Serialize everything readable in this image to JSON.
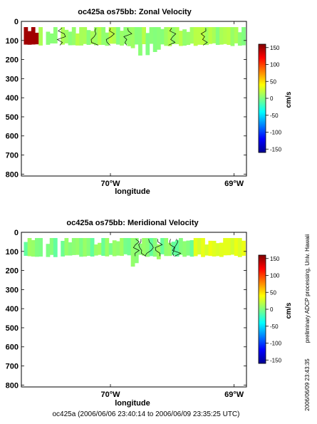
{
  "footer": "oc425a (2006/06/06 23:40:14 to 2006/06/09 23:35:25 UTC)",
  "side_note": "preliminary ADCP processing,  Univ. Hawaii",
  "side_timestamp": "2006/06/09 23:43:35",
  "colorbar": {
    "label": "cm/s",
    "ticks": [
      150,
      100,
      50,
      0,
      -50,
      -100,
      -150
    ],
    "range": [
      -160,
      160
    ],
    "colormap": [
      "#00008f",
      "#0000ff",
      "#0080ff",
      "#00ffff",
      "#80ff80",
      "#ffff00",
      "#ff8000",
      "#ff0000",
      "#800000"
    ]
  },
  "chart_data": [
    {
      "type": "heatmap",
      "title": "oc425a os75bb: Zonal Velocity",
      "xlabel": "longitude",
      "ylabel": "",
      "xticks": [
        {
          "value": -70,
          "label": "70°W"
        },
        {
          "value": -69,
          "label": "69°W"
        }
      ],
      "yticks": [
        0,
        100,
        200,
        300,
        400,
        500,
        600,
        700,
        800
      ],
      "xlim": [
        -70.72,
        -68.9
      ],
      "ylim": [
        810,
        0
      ],
      "unit": "cm/s",
      "data_depth_range": [
        30,
        130
      ],
      "max_depth": 180,
      "dominant_value": 10,
      "extreme_value": 150,
      "extreme_lon": -70.66
    },
    {
      "type": "heatmap",
      "title": "oc425a os75bb: Meridional Velocity",
      "xlabel": "longitude",
      "ylabel": "",
      "xticks": [
        {
          "value": -70,
          "label": "70°W"
        },
        {
          "value": -69,
          "label": "69°W"
        }
      ],
      "yticks": [
        0,
        100,
        200,
        300,
        400,
        500,
        600,
        700,
        800
      ],
      "xlim": [
        -70.72,
        -68.9
      ],
      "ylim": [
        810,
        0
      ],
      "unit": "cm/s",
      "data_depth_range": [
        30,
        130
      ],
      "max_depth": 180,
      "dominant_value": 0,
      "eastern_value": 30
    }
  ]
}
